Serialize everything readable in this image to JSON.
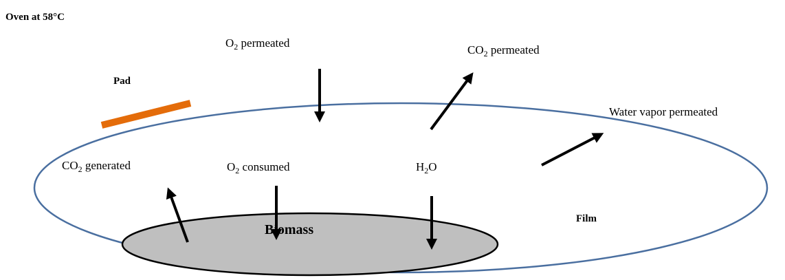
{
  "title": "Oven at 58°C",
  "labels": {
    "o2_permeated": [
      "O",
      "2",
      " permeated"
    ],
    "co2_permeated": [
      "CO",
      "2",
      " permeated"
    ],
    "pad": "Pad",
    "water_vapor": "Water vapor permeated",
    "co2_generated": [
      "CO",
      "2",
      " generated"
    ],
    "o2_consumed": [
      "O",
      "2",
      " consumed"
    ],
    "h2o": [
      "H",
      "2",
      "O"
    ],
    "film": "Film",
    "biomass": "Biomass"
  }
}
